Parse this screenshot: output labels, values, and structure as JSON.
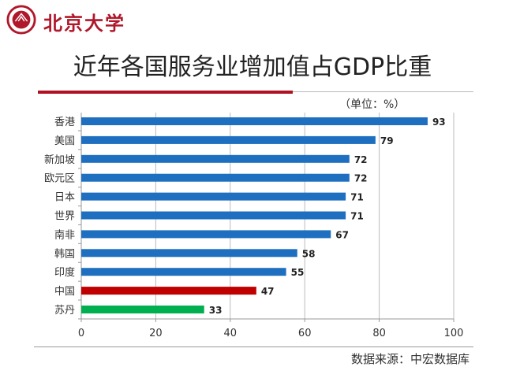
{
  "header": {
    "logo_text": "北京大学"
  },
  "chart_data": {
    "type": "bar",
    "orientation": "horizontal",
    "title": "近年各国服务业增加值占GDP比重",
    "unit_note": "（单位：%）",
    "categories": [
      "香港",
      "美国",
      "新加坡",
      "欧元区",
      "日本",
      "世界",
      "南非",
      "韩国",
      "印度",
      "中国",
      "苏丹"
    ],
    "values": [
      93,
      79,
      72,
      72,
      71,
      71,
      67,
      58,
      55,
      47,
      33
    ],
    "colors": [
      "#1f6fc0",
      "#1f6fc0",
      "#1f6fc0",
      "#1f6fc0",
      "#1f6fc0",
      "#1f6fc0",
      "#1f6fc0",
      "#1f6fc0",
      "#1f6fc0",
      "#c00000",
      "#00b050"
    ],
    "xlim": [
      0,
      100
    ],
    "xticks": [
      "0",
      "20",
      "40",
      "60",
      "80",
      "100"
    ],
    "grid": true,
    "source": "数据来源：中宏数据库"
  }
}
